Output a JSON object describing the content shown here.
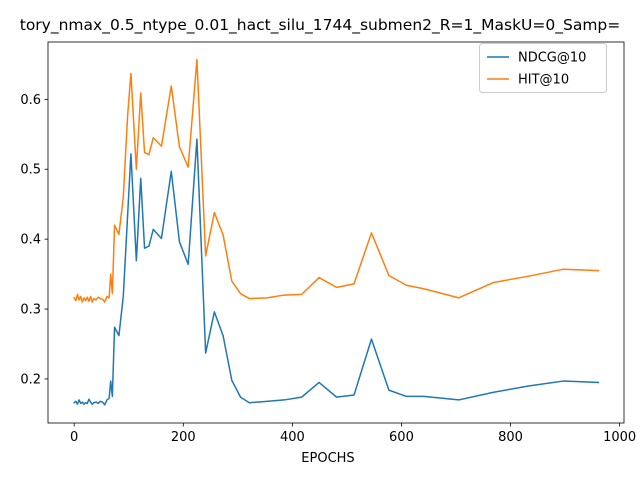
{
  "chart_data": {
    "type": "line",
    "title": "tory_nmax_0.5_ntype_0.01_hact_silu_1744_submen2_R=1_MaskU=0_Samp=",
    "xlabel": "EPOCHS",
    "ylabel": "",
    "xlim": [
      -48,
      1008
    ],
    "ylim": [
      0.137,
      0.682
    ],
    "xticks": [
      0,
      200,
      400,
      600,
      800,
      1000
    ],
    "yticks": [
      0.2,
      0.3,
      0.4,
      0.5,
      0.6
    ],
    "xtick_labels": [
      "0",
      "200",
      "400",
      "600",
      "800",
      "1000"
    ],
    "ytick_labels": [
      "0.2",
      "0.3",
      "0.4",
      "0.5",
      "0.6"
    ],
    "grid": false,
    "legend_position": "top-right",
    "series": [
      {
        "name": "NDCG@10",
        "color": "#1f77b4",
        "points": [
          [
            0,
            0.166
          ],
          [
            3,
            0.168
          ],
          [
            6,
            0.164
          ],
          [
            9,
            0.17
          ],
          [
            12,
            0.165
          ],
          [
            15,
            0.167
          ],
          [
            18,
            0.164
          ],
          [
            21,
            0.166
          ],
          [
            24,
            0.165
          ],
          [
            27,
            0.171
          ],
          [
            30,
            0.167
          ],
          [
            33,
            0.164
          ],
          [
            36,
            0.166
          ],
          [
            40,
            0.167
          ],
          [
            44,
            0.165
          ],
          [
            48,
            0.168
          ],
          [
            52,
            0.167
          ],
          [
            56,
            0.163
          ],
          [
            60,
            0.17
          ],
          [
            64,
            0.172
          ],
          [
            67,
            0.197
          ],
          [
            70,
            0.175
          ],
          [
            74,
            0.274
          ],
          [
            82,
            0.262
          ],
          [
            90,
            0.318
          ],
          [
            104,
            0.522
          ],
          [
            114,
            0.369
          ],
          [
            122,
            0.487
          ],
          [
            129,
            0.387
          ],
          [
            137,
            0.39
          ],
          [
            145,
            0.414
          ],
          [
            160,
            0.401
          ],
          [
            178,
            0.497
          ],
          [
            193,
            0.396
          ],
          [
            209,
            0.364
          ],
          [
            225,
            0.543
          ],
          [
            241,
            0.237
          ],
          [
            257,
            0.296
          ],
          [
            273,
            0.262
          ],
          [
            289,
            0.198
          ],
          [
            305,
            0.174
          ],
          [
            321,
            0.166
          ],
          [
            353,
            0.168
          ],
          [
            385,
            0.17
          ],
          [
            417,
            0.174
          ],
          [
            449,
            0.195
          ],
          [
            481,
            0.174
          ],
          [
            513,
            0.177
          ],
          [
            545,
            0.257
          ],
          [
            577,
            0.184
          ],
          [
            609,
            0.175
          ],
          [
            641,
            0.175
          ],
          [
            705,
            0.17
          ],
          [
            769,
            0.181
          ],
          [
            833,
            0.19
          ],
          [
            897,
            0.197
          ],
          [
            961,
            0.195
          ]
        ]
      },
      {
        "name": "HIT@10",
        "color": "#ff7f0e",
        "points": [
          [
            0,
            0.316
          ],
          [
            3,
            0.312
          ],
          [
            6,
            0.321
          ],
          [
            9,
            0.313
          ],
          [
            12,
            0.318
          ],
          [
            15,
            0.31
          ],
          [
            18,
            0.316
          ],
          [
            21,
            0.312
          ],
          [
            24,
            0.317
          ],
          [
            27,
            0.311
          ],
          [
            30,
            0.318
          ],
          [
            33,
            0.31
          ],
          [
            36,
            0.315
          ],
          [
            40,
            0.313
          ],
          [
            44,
            0.317
          ],
          [
            48,
            0.315
          ],
          [
            52,
            0.314
          ],
          [
            56,
            0.31
          ],
          [
            60,
            0.318
          ],
          [
            64,
            0.316
          ],
          [
            67,
            0.35
          ],
          [
            70,
            0.322
          ],
          [
            74,
            0.42
          ],
          [
            82,
            0.407
          ],
          [
            90,
            0.46
          ],
          [
            98,
            0.577
          ],
          [
            104,
            0.637
          ],
          [
            114,
            0.5
          ],
          [
            122,
            0.609
          ],
          [
            129,
            0.524
          ],
          [
            137,
            0.521
          ],
          [
            145,
            0.545
          ],
          [
            160,
            0.533
          ],
          [
            178,
            0.619
          ],
          [
            193,
            0.532
          ],
          [
            209,
            0.503
          ],
          [
            225,
            0.657
          ],
          [
            241,
            0.376
          ],
          [
            257,
            0.438
          ],
          [
            273,
            0.406
          ],
          [
            289,
            0.34
          ],
          [
            305,
            0.322
          ],
          [
            321,
            0.315
          ],
          [
            353,
            0.316
          ],
          [
            385,
            0.32
          ],
          [
            417,
            0.321
          ],
          [
            449,
            0.345
          ],
          [
            481,
            0.331
          ],
          [
            513,
            0.336
          ],
          [
            545,
            0.409
          ],
          [
            577,
            0.348
          ],
          [
            609,
            0.334
          ],
          [
            641,
            0.329
          ],
          [
            705,
            0.316
          ],
          [
            769,
            0.338
          ],
          [
            833,
            0.347
          ],
          [
            897,
            0.357
          ],
          [
            961,
            0.355
          ]
        ]
      }
    ]
  }
}
